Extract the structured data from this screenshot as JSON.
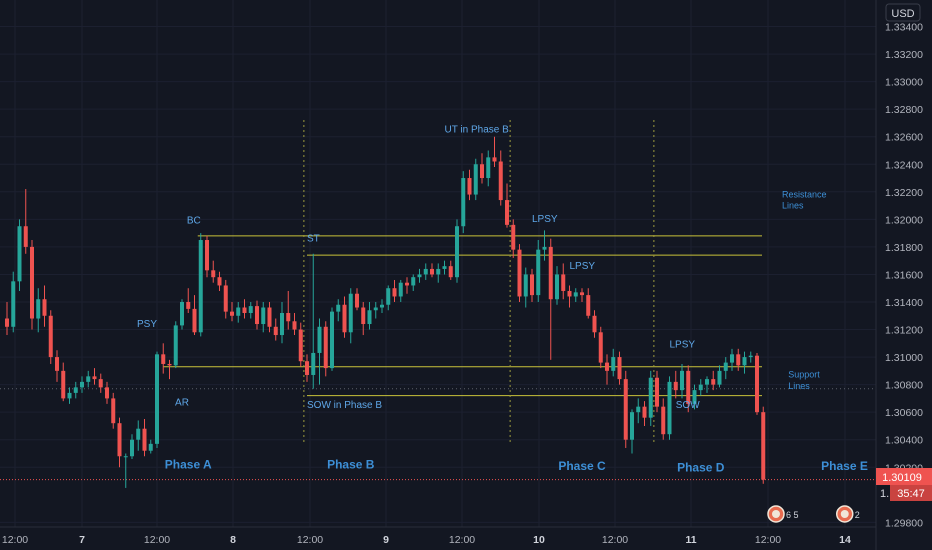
{
  "chart_data": {
    "type": "candlestick",
    "currency": "USD",
    "ylim": [
      1.2973,
      1.3352
    ],
    "y_ticks": [
      "1.33400",
      "1.33200",
      "1.33000",
      "1.32800",
      "1.32600",
      "1.32400",
      "1.32200",
      "1.32000",
      "1.31800",
      "1.31600",
      "1.31400",
      "1.31200",
      "1.31000",
      "1.30800",
      "1.30600",
      "1.30400",
      "1.30200",
      "1.29800"
    ],
    "x_ticks": [
      "12:00",
      "7",
      "12:00",
      "8",
      "12:00",
      "9",
      "12:00",
      "10",
      "12:00",
      "11",
      "12:00",
      "14"
    ],
    "last_price": "1.30109",
    "countdown": "35:47",
    "price_marker_cut": "1.",
    "crosshair_price": 1.3077,
    "last_price_value": 1.3011,
    "resistance_lines": [
      1.3188,
      1.3174
    ],
    "support_lines": [
      1.3093,
      1.3072
    ],
    "candles": [
      {
        "o": 1.3128,
        "h": 1.314,
        "l": 1.3116,
        "c": 1.3122
      },
      {
        "o": 1.3122,
        "h": 1.3162,
        "l": 1.3118,
        "c": 1.3155
      },
      {
        "o": 1.3155,
        "h": 1.32,
        "l": 1.3148,
        "c": 1.3195
      },
      {
        "o": 1.3195,
        "h": 1.3222,
        "l": 1.3175,
        "c": 1.318
      },
      {
        "o": 1.318,
        "h": 1.3185,
        "l": 1.312,
        "c": 1.3128
      },
      {
        "o": 1.3128,
        "h": 1.315,
        "l": 1.3118,
        "c": 1.3142
      },
      {
        "o": 1.3142,
        "h": 1.3152,
        "l": 1.3122,
        "c": 1.313
      },
      {
        "o": 1.313,
        "h": 1.3134,
        "l": 1.3095,
        "c": 1.31
      },
      {
        "o": 1.31,
        "h": 1.3105,
        "l": 1.3082,
        "c": 1.309
      },
      {
        "o": 1.309,
        "h": 1.3096,
        "l": 1.3068,
        "c": 1.307
      },
      {
        "o": 1.307,
        "h": 1.3078,
        "l": 1.3066,
        "c": 1.3074
      },
      {
        "o": 1.3074,
        "h": 1.3082,
        "l": 1.307,
        "c": 1.3078
      },
      {
        "o": 1.3078,
        "h": 1.3086,
        "l": 1.3074,
        "c": 1.3082
      },
      {
        "o": 1.3082,
        "h": 1.309,
        "l": 1.3078,
        "c": 1.3086
      },
      {
        "o": 1.3086,
        "h": 1.3092,
        "l": 1.308,
        "c": 1.3084
      },
      {
        "o": 1.3084,
        "h": 1.3088,
        "l": 1.3074,
        "c": 1.3078
      },
      {
        "o": 1.3078,
        "h": 1.3082,
        "l": 1.3066,
        "c": 1.307
      },
      {
        "o": 1.307,
        "h": 1.3074,
        "l": 1.3048,
        "c": 1.3052
      },
      {
        "o": 1.3052,
        "h": 1.3056,
        "l": 1.302,
        "c": 1.3028
      },
      {
        "o": 1.3028,
        "h": 1.303,
        "l": 1.3005,
        "c": 1.3028
      },
      {
        "o": 1.3028,
        "h": 1.3044,
        "l": 1.3026,
        "c": 1.304
      },
      {
        "o": 1.304,
        "h": 1.3054,
        "l": 1.3032,
        "c": 1.3048
      },
      {
        "o": 1.3048,
        "h": 1.3055,
        "l": 1.3028,
        "c": 1.3032
      },
      {
        "o": 1.3032,
        "h": 1.304,
        "l": 1.303,
        "c": 1.3037
      },
      {
        "o": 1.3037,
        "h": 1.3104,
        "l": 1.3034,
        "c": 1.3102
      },
      {
        "o": 1.3102,
        "h": 1.311,
        "l": 1.3088,
        "c": 1.3095
      },
      {
        "o": 1.3095,
        "h": 1.3098,
        "l": 1.3084,
        "c": 1.3094
      },
      {
        "o": 1.3094,
        "h": 1.3126,
        "l": 1.3092,
        "c": 1.3123
      },
      {
        "o": 1.3123,
        "h": 1.3142,
        "l": 1.312,
        "c": 1.314
      },
      {
        "o": 1.314,
        "h": 1.315,
        "l": 1.3132,
        "c": 1.3135
      },
      {
        "o": 1.3135,
        "h": 1.3145,
        "l": 1.3116,
        "c": 1.3118
      },
      {
        "o": 1.3118,
        "h": 1.319,
        "l": 1.3115,
        "c": 1.3185
      },
      {
        "o": 1.3185,
        "h": 1.3188,
        "l": 1.3158,
        "c": 1.3163
      },
      {
        "o": 1.3163,
        "h": 1.317,
        "l": 1.3154,
        "c": 1.3158
      },
      {
        "o": 1.3158,
        "h": 1.3162,
        "l": 1.3148,
        "c": 1.3152
      },
      {
        "o": 1.3152,
        "h": 1.3156,
        "l": 1.3128,
        "c": 1.3133
      },
      {
        "o": 1.3133,
        "h": 1.314,
        "l": 1.3126,
        "c": 1.313
      },
      {
        "o": 1.313,
        "h": 1.314,
        "l": 1.3125,
        "c": 1.3136
      },
      {
        "o": 1.3136,
        "h": 1.3142,
        "l": 1.3128,
        "c": 1.3132
      },
      {
        "o": 1.3132,
        "h": 1.314,
        "l": 1.3128,
        "c": 1.3137
      },
      {
        "o": 1.3137,
        "h": 1.3141,
        "l": 1.312,
        "c": 1.3124
      },
      {
        "o": 1.3124,
        "h": 1.314,
        "l": 1.3118,
        "c": 1.3136
      },
      {
        "o": 1.3136,
        "h": 1.314,
        "l": 1.3118,
        "c": 1.3122
      },
      {
        "o": 1.3122,
        "h": 1.3128,
        "l": 1.3112,
        "c": 1.3116
      },
      {
        "o": 1.3116,
        "h": 1.314,
        "l": 1.311,
        "c": 1.3132
      },
      {
        "o": 1.3132,
        "h": 1.3148,
        "l": 1.312,
        "c": 1.3126
      },
      {
        "o": 1.3126,
        "h": 1.3132,
        "l": 1.3116,
        "c": 1.312
      },
      {
        "o": 1.312,
        "h": 1.3125,
        "l": 1.3093,
        "c": 1.3097
      },
      {
        "o": 1.3097,
        "h": 1.3102,
        "l": 1.3082,
        "c": 1.3087
      },
      {
        "o": 1.3087,
        "h": 1.3175,
        "l": 1.3077,
        "c": 1.3103
      },
      {
        "o": 1.3103,
        "h": 1.3128,
        "l": 1.308,
        "c": 1.3122
      },
      {
        "o": 1.3122,
        "h": 1.3126,
        "l": 1.3086,
        "c": 1.3092
      },
      {
        "o": 1.3092,
        "h": 1.3136,
        "l": 1.309,
        "c": 1.3133
      },
      {
        "o": 1.3133,
        "h": 1.3142,
        "l": 1.3126,
        "c": 1.3138
      },
      {
        "o": 1.3138,
        "h": 1.3144,
        "l": 1.3114,
        "c": 1.3118
      },
      {
        "o": 1.3118,
        "h": 1.315,
        "l": 1.311,
        "c": 1.3146
      },
      {
        "o": 1.3146,
        "h": 1.315,
        "l": 1.3134,
        "c": 1.3136
      },
      {
        "o": 1.3136,
        "h": 1.314,
        "l": 1.3116,
        "c": 1.3124
      },
      {
        "o": 1.3124,
        "h": 1.314,
        "l": 1.312,
        "c": 1.3134
      },
      {
        "o": 1.3134,
        "h": 1.314,
        "l": 1.3128,
        "c": 1.3136
      },
      {
        "o": 1.3136,
        "h": 1.3142,
        "l": 1.3132,
        "c": 1.3138
      },
      {
        "o": 1.3138,
        "h": 1.3152,
        "l": 1.3134,
        "c": 1.315
      },
      {
        "o": 1.315,
        "h": 1.3156,
        "l": 1.314,
        "c": 1.3144
      },
      {
        "o": 1.3144,
        "h": 1.3156,
        "l": 1.314,
        "c": 1.3154
      },
      {
        "o": 1.3154,
        "h": 1.3158,
        "l": 1.3146,
        "c": 1.3152
      },
      {
        "o": 1.3152,
        "h": 1.316,
        "l": 1.3148,
        "c": 1.3158
      },
      {
        "o": 1.3158,
        "h": 1.3164,
        "l": 1.3154,
        "c": 1.316
      },
      {
        "o": 1.316,
        "h": 1.3168,
        "l": 1.3156,
        "c": 1.3164
      },
      {
        "o": 1.3164,
        "h": 1.3168,
        "l": 1.3158,
        "c": 1.316
      },
      {
        "o": 1.316,
        "h": 1.3168,
        "l": 1.3154,
        "c": 1.3164
      },
      {
        "o": 1.3164,
        "h": 1.317,
        "l": 1.316,
        "c": 1.3166
      },
      {
        "o": 1.3166,
        "h": 1.317,
        "l": 1.3156,
        "c": 1.3158
      },
      {
        "o": 1.3158,
        "h": 1.32,
        "l": 1.3154,
        "c": 1.3195
      },
      {
        "o": 1.3195,
        "h": 1.3235,
        "l": 1.319,
        "c": 1.323
      },
      {
        "o": 1.323,
        "h": 1.3236,
        "l": 1.3214,
        "c": 1.3218
      },
      {
        "o": 1.3218,
        "h": 1.3244,
        "l": 1.3214,
        "c": 1.324
      },
      {
        "o": 1.324,
        "h": 1.3248,
        "l": 1.3226,
        "c": 1.323
      },
      {
        "o": 1.323,
        "h": 1.325,
        "l": 1.3224,
        "c": 1.3245
      },
      {
        "o": 1.3245,
        "h": 1.326,
        "l": 1.3238,
        "c": 1.3242
      },
      {
        "o": 1.3242,
        "h": 1.325,
        "l": 1.321,
        "c": 1.3214
      },
      {
        "o": 1.3214,
        "h": 1.3226,
        "l": 1.3194,
        "c": 1.3196
      },
      {
        "o": 1.3196,
        "h": 1.32,
        "l": 1.3172,
        "c": 1.3178
      },
      {
        "o": 1.3178,
        "h": 1.3182,
        "l": 1.314,
        "c": 1.3144
      },
      {
        "o": 1.3144,
        "h": 1.3165,
        "l": 1.3136,
        "c": 1.316
      },
      {
        "o": 1.316,
        "h": 1.3164,
        "l": 1.314,
        "c": 1.3145
      },
      {
        "o": 1.3145,
        "h": 1.3185,
        "l": 1.314,
        "c": 1.3178
      },
      {
        "o": 1.3178,
        "h": 1.3192,
        "l": 1.317,
        "c": 1.318
      },
      {
        "o": 1.318,
        "h": 1.3186,
        "l": 1.3098,
        "c": 1.3142
      },
      {
        "o": 1.3142,
        "h": 1.3166,
        "l": 1.3138,
        "c": 1.316
      },
      {
        "o": 1.316,
        "h": 1.3168,
        "l": 1.3142,
        "c": 1.3148
      },
      {
        "o": 1.3148,
        "h": 1.3152,
        "l": 1.3136,
        "c": 1.3144
      },
      {
        "o": 1.3144,
        "h": 1.315,
        "l": 1.314,
        "c": 1.3147
      },
      {
        "o": 1.3147,
        "h": 1.315,
        "l": 1.314,
        "c": 1.3145
      },
      {
        "o": 1.3145,
        "h": 1.315,
        "l": 1.3128,
        "c": 1.313
      },
      {
        "o": 1.313,
        "h": 1.3134,
        "l": 1.3114,
        "c": 1.3118
      },
      {
        "o": 1.3118,
        "h": 1.3122,
        "l": 1.3092,
        "c": 1.3096
      },
      {
        "o": 1.3096,
        "h": 1.3102,
        "l": 1.308,
        "c": 1.309
      },
      {
        "o": 1.309,
        "h": 1.3106,
        "l": 1.3086,
        "c": 1.31
      },
      {
        "o": 1.31,
        "h": 1.3104,
        "l": 1.308,
        "c": 1.3084
      },
      {
        "o": 1.3084,
        "h": 1.309,
        "l": 1.3034,
        "c": 1.304
      },
      {
        "o": 1.304,
        "h": 1.3062,
        "l": 1.303,
        "c": 1.306
      },
      {
        "o": 1.306,
        "h": 1.307,
        "l": 1.3052,
        "c": 1.3064
      },
      {
        "o": 1.3064,
        "h": 1.3068,
        "l": 1.305,
        "c": 1.3056
      },
      {
        "o": 1.3056,
        "h": 1.309,
        "l": 1.305,
        "c": 1.3085
      },
      {
        "o": 1.3085,
        "h": 1.309,
        "l": 1.306,
        "c": 1.3064
      },
      {
        "o": 1.3064,
        "h": 1.307,
        "l": 1.304,
        "c": 1.3044
      },
      {
        "o": 1.3044,
        "h": 1.3086,
        "l": 1.304,
        "c": 1.3082
      },
      {
        "o": 1.3082,
        "h": 1.309,
        "l": 1.307,
        "c": 1.3076
      },
      {
        "o": 1.3076,
        "h": 1.3095,
        "l": 1.307,
        "c": 1.309
      },
      {
        "o": 1.309,
        "h": 1.3094,
        "l": 1.306,
        "c": 1.3066
      },
      {
        "o": 1.3066,
        "h": 1.308,
        "l": 1.3062,
        "c": 1.3076
      },
      {
        "o": 1.3076,
        "h": 1.3084,
        "l": 1.3072,
        "c": 1.308
      },
      {
        "o": 1.308,
        "h": 1.3086,
        "l": 1.3074,
        "c": 1.3084
      },
      {
        "o": 1.3084,
        "h": 1.309,
        "l": 1.3076,
        "c": 1.308
      },
      {
        "o": 1.308,
        "h": 1.3094,
        "l": 1.3078,
        "c": 1.309
      },
      {
        "o": 1.309,
        "h": 1.31,
        "l": 1.3084,
        "c": 1.3096
      },
      {
        "o": 1.3096,
        "h": 1.3106,
        "l": 1.309,
        "c": 1.3102
      },
      {
        "o": 1.3102,
        "h": 1.3106,
        "l": 1.309,
        "c": 1.3094
      },
      {
        "o": 1.3094,
        "h": 1.3104,
        "l": 1.3088,
        "c": 1.31
      },
      {
        "o": 1.31,
        "h": 1.3104,
        "l": 1.3096,
        "c": 1.3101
      },
      {
        "o": 1.3101,
        "h": 1.3103,
        "l": 1.3058,
        "c": 1.306
      },
      {
        "o": 1.306,
        "h": 1.3064,
        "l": 1.3008,
        "c": 1.3011
      }
    ],
    "annotations": [
      {
        "text": "BC",
        "candle": 31,
        "price": 1.3197,
        "color": "#5fa7e8",
        "anchor": "end"
      },
      {
        "text": "PSY",
        "candle": 24,
        "price": 1.3122,
        "color": "#5fa7e8",
        "anchor": "end"
      },
      {
        "text": "AR",
        "candle": 28,
        "price": 1.3065,
        "color": "#5fa7e8",
        "anchor": "middle"
      },
      {
        "text": "ST",
        "candle": 48,
        "price": 1.3184,
        "color": "#5fa7e8",
        "anchor": "start"
      },
      {
        "text": "SOW in Phase B",
        "candle": 48,
        "price": 1.3063,
        "color": "#5fa7e8",
        "anchor": "start"
      },
      {
        "text": "UT in Phase B",
        "candle": 70,
        "price": 1.3263,
        "color": "#5fa7e8",
        "anchor": "start"
      },
      {
        "text": "LPSY",
        "candle": 84,
        "price": 1.3198,
        "color": "#5fa7e8",
        "anchor": "start"
      },
      {
        "text": "LPSY",
        "candle": 90,
        "price": 1.3164,
        "color": "#5fa7e8",
        "anchor": "start"
      },
      {
        "text": "LPSY",
        "candle": 106,
        "price": 1.3107,
        "color": "#5fa7e8",
        "anchor": "start"
      },
      {
        "text": "SOW",
        "candle": 107,
        "price": 1.3063,
        "color": "#5fa7e8",
        "anchor": "start"
      },
      {
        "text": "Resistance",
        "candle": 124,
        "price": 1.3216,
        "color": "#3d8fd6",
        "anchor": "start",
        "small": true
      },
      {
        "text": "Lines",
        "candle": 124,
        "price": 1.3208,
        "color": "#3d8fd6",
        "anchor": "start",
        "small": true
      },
      {
        "text": "Support",
        "candle": 125,
        "price": 1.3085,
        "color": "#3d8fd6",
        "anchor": "start",
        "small": true
      },
      {
        "text": "Lines",
        "candle": 125,
        "price": 1.3077,
        "color": "#3d8fd6",
        "anchor": "start",
        "small": true
      }
    ],
    "phases": [
      {
        "name": "Phase A",
        "candle": 29,
        "price": 1.3019
      },
      {
        "name": "Phase B",
        "candle": 55,
        "price": 1.3019
      },
      {
        "name": "Phase C",
        "candle": 92,
        "price": 1.3018
      },
      {
        "name": "Phase D",
        "candle": 111,
        "price": 1.3017
      },
      {
        "name": "Phase E",
        "candle": 134,
        "price": 1.3018
      }
    ],
    "phase_dividers": [
      47.5,
      80.5,
      103.5
    ],
    "event_badges": [
      {
        "label": "6 5",
        "candle": 124
      },
      {
        "label": "2",
        "candle": 135
      }
    ]
  }
}
